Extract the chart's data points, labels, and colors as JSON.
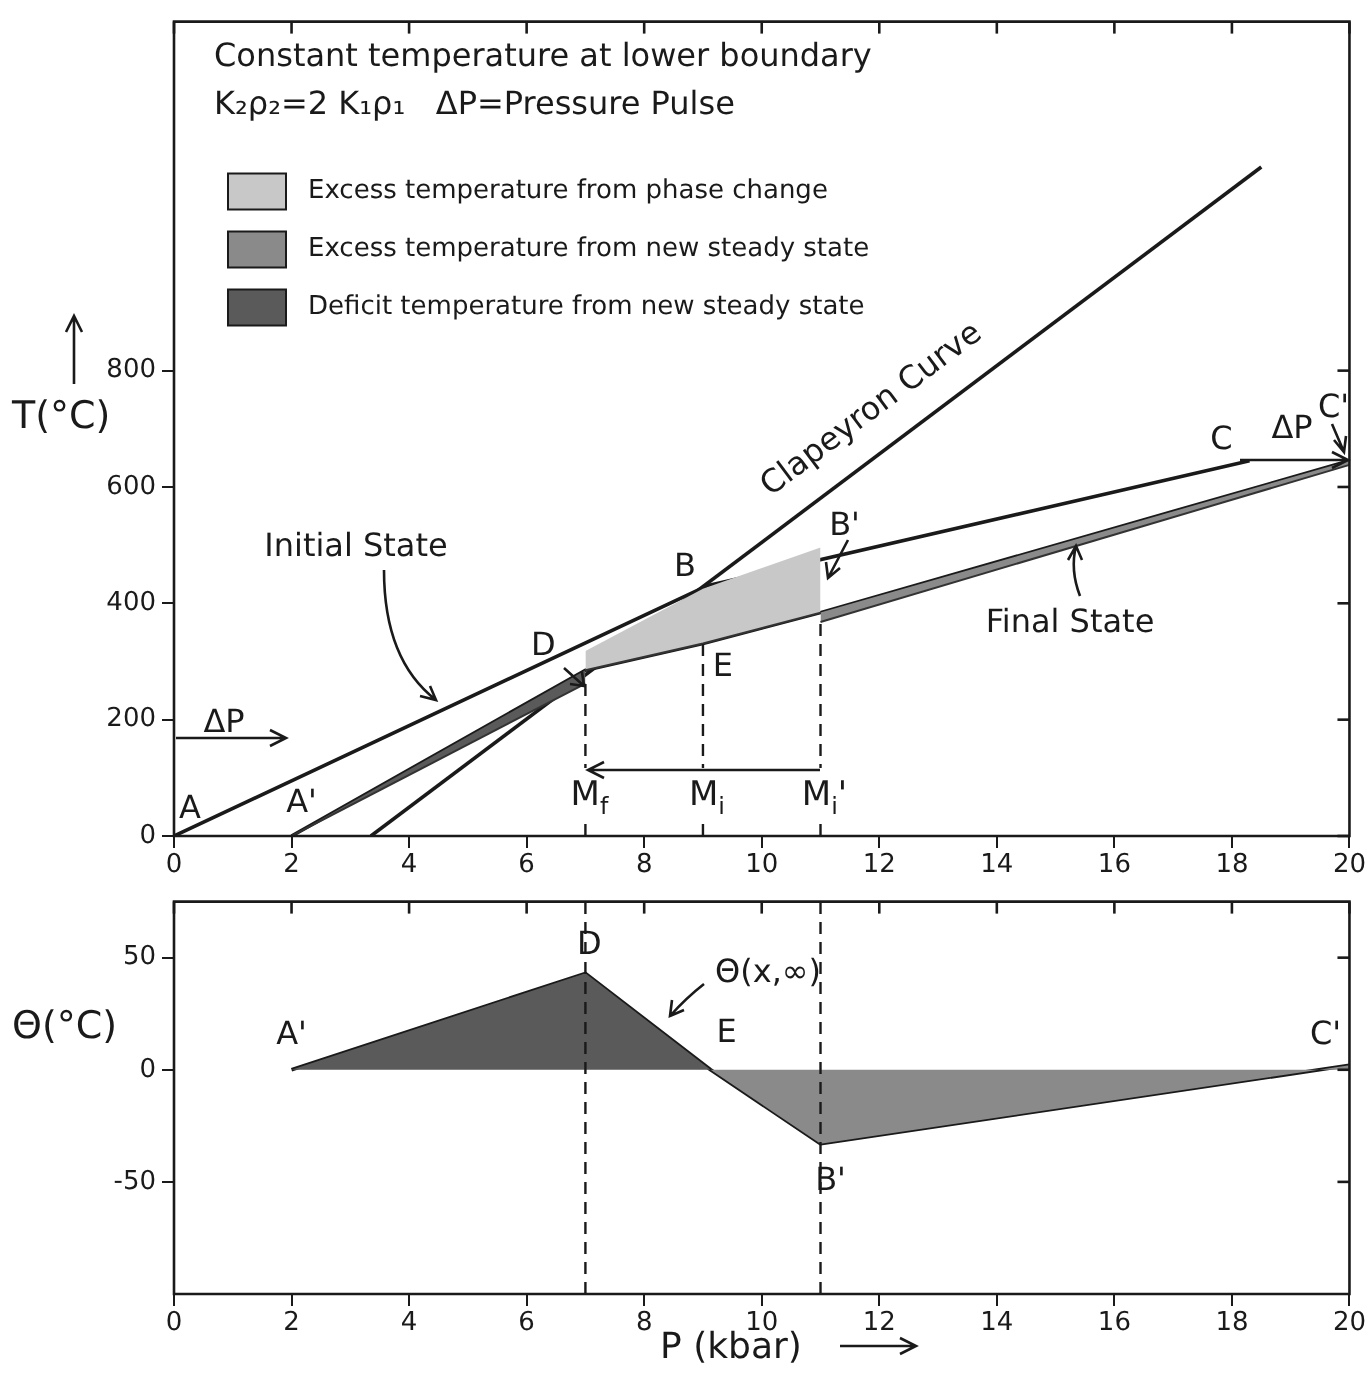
{
  "chart_data": [
    {
      "type": "line",
      "title": "Constant temperature at lower boundary",
      "subtitle": "K₂ρ₂=2 K₁ρ₁   ΔP=Pressure Pulse",
      "ylabel": "T(°C)",
      "legend": "top left",
      "marker": "none",
      "xlim": [
        0,
        20
      ],
      "xticks": [
        0,
        2,
        4,
        6,
        8,
        10,
        12,
        14,
        16,
        18,
        20
      ],
      "ylim": [
        0,
        1400
      ],
      "yticks": [
        0,
        200,
        400,
        600,
        800
      ],
      "series": [
        {
          "type": "line",
          "color": "#333333",
          "x": [
            7,
            9,
            11
          ],
          "values": [
            285,
            331,
            384
          ]
        },
        {
          "type": "area",
          "name": "Excess temperature from phase change",
          "color": "#c8c8c8",
          "x": [
            7,
            9,
            11
          ],
          "values": [
            318,
            425,
            496
          ]
        },
        {
          "type": "line",
          "color": "#333333",
          "x": [
            11,
            20
          ],
          "values": [
            368,
            638
          ]
        },
        {
          "type": "area",
          "name": "Excess temperature from new steady state",
          "color": "#8a8a8a",
          "x": [
            11,
            20
          ],
          "values": [
            384,
            645
          ]
        },
        {
          "type": "line",
          "color": "#333333",
          "x": [
            2,
            7
          ],
          "values": [
            0,
            262
          ]
        },
        {
          "type": "area",
          "name": "Deficit temperature from new steady state",
          "color": "#5a5a5a",
          "x": [
            2,
            7
          ],
          "values": [
            0,
            285
          ]
        },
        {
          "type": "line",
          "color": "#1a1a1a",
          "x": [
            0,
            9.07,
            18.3
          ],
          "values": [
            0,
            430,
            645
          ]
        },
        {
          "type": "line",
          "color": "#1a1a1a",
          "x": [
            2,
            7,
            9,
            11,
            20
          ],
          "values": [
            0,
            285,
            331,
            384,
            645
          ]
        },
        {
          "type": "line",
          "color": "#1a1a1a",
          "x": [
            3.35,
            18.5
          ],
          "values": [
            0,
            1150
          ]
        }
      ],
      "ref_lines": [
        {
          "axis": "x",
          "value": 7,
          "label": "M$_{f}$",
          "line_style": "dashed"
        },
        {
          "axis": "x",
          "value": 9,
          "label": "M$_{i}$",
          "line_style": "dashed"
        },
        {
          "axis": "x",
          "value": 11,
          "label": "M$_{i}$'",
          "line_style": "dashed"
        }
      ],
      "annotations": [
        {
          "text": "A",
          "x": 0,
          "y": 0
        },
        {
          "text": "A'",
          "x": 2,
          "y": 0
        },
        {
          "text": "B",
          "x": 9.07,
          "y": 430
        },
        {
          "text": "B'",
          "x": 11,
          "y": 384
        },
        {
          "text": "C",
          "x": 18.3,
          "y": 645
        },
        {
          "text": "C'",
          "x": 20,
          "y": 645
        },
        {
          "text": "D",
          "x": 7,
          "y": 285
        },
        {
          "text": "E",
          "x": 9,
          "y": 331
        },
        "ΔP",
        "ΔP",
        "Initial State",
        "Final State",
        "Clapeyron Curve"
      ]
    },
    {
      "type": "line",
      "ylabel": "Θ(°C)",
      "xlabel": "P (kbar)",
      "marker": "none",
      "xlim": [
        0,
        20
      ],
      "xticks": [
        0,
        2,
        4,
        6,
        8,
        10,
        12,
        14,
        16,
        18,
        20
      ],
      "ylim": [
        -100,
        75
      ],
      "yticks": [
        -50,
        0,
        50
      ],
      "series": [
        {
          "type": "area",
          "color": "#5a5a5a",
          "x": [
            2,
            7,
            9.13
          ],
          "values": [
            0,
            43,
            0
          ]
        },
        {
          "type": "area",
          "color": "#8a8a8a",
          "x": [
            9.13,
            11,
            20
          ],
          "values": [
            0,
            -33,
            2
          ]
        },
        {
          "type": "line",
          "color": "#1a1a1a",
          "x": [
            2,
            7,
            9.13,
            11,
            20
          ],
          "values": [
            0,
            43,
            0,
            -33,
            2
          ]
        }
      ],
      "ref_lines": [
        {
          "axis": "x",
          "value": 7,
          "line_style": "dashed"
        },
        {
          "axis": "x",
          "value": 11,
          "line_style": "dashed"
        }
      ],
      "annotations": [
        {
          "text": "A'",
          "x": 2,
          "y": 0
        },
        {
          "text": "D",
          "x": 7,
          "y": 43
        },
        {
          "text": "E",
          "x": 9.13,
          "y": 0
        },
        {
          "text": "B'",
          "x": 11,
          "y": -33
        },
        {
          "text": "C'",
          "x": 20,
          "y": 2
        },
        "Θ(x,∞)"
      ]
    }
  ]
}
